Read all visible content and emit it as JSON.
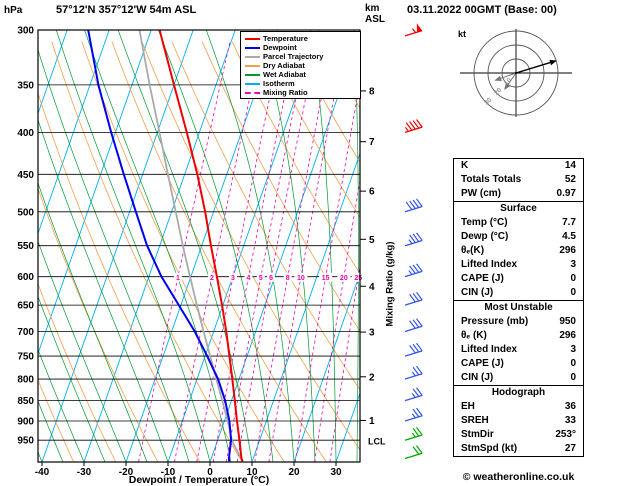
{
  "header": {
    "location": "57°12'N 357°12'W 54m ASL",
    "datetime": "03.11.2022 00GMT (Base: 00)"
  },
  "axes": {
    "pressure_unit": "hPa",
    "km_unit": "km",
    "asl_label": "ASL",
    "xlabel": "Dewpoint / Temperature (°C)",
    "mixing_ratio_label": "Mixing Ratio (g/kg)",
    "lcl_label": "LCL",
    "hodograph_unit": "kt"
  },
  "legend": [
    {
      "label": "Temperature",
      "color": "#ee0000",
      "dash": false
    },
    {
      "label": "Dewpoint",
      "color": "#0000ee",
      "dash": false
    },
    {
      "label": "Parcel Trajectory",
      "color": "#aaaaaa",
      "dash": false
    },
    {
      "label": "Dry Adiabat",
      "color": "#f0a050",
      "dash": false
    },
    {
      "label": "Wet Adiabat",
      "color": "#009933",
      "dash": false
    },
    {
      "label": "Isotherm",
      "color": "#00b0f0",
      "dash": false
    },
    {
      "label": "Mixing Ratio",
      "color": "#ee00aa",
      "dash": true
    }
  ],
  "stats_sections": [
    {
      "title": null,
      "rows": [
        [
          "K",
          "14"
        ],
        [
          "Totals Totals",
          "52"
        ],
        [
          "PW (cm)",
          "0.97"
        ]
      ]
    },
    {
      "title": "Surface",
      "rows": [
        [
          "Temp (°C)",
          "7.7"
        ],
        [
          "Dewp (°C)",
          "4.5"
        ],
        [
          "θₑ(K)",
          "296"
        ],
        [
          "Lifted Index",
          "3"
        ],
        [
          "CAPE (J)",
          "0"
        ],
        [
          "CIN (J)",
          "0"
        ]
      ]
    },
    {
      "title": "Most Unstable",
      "rows": [
        [
          "Pressure (mb)",
          "950"
        ],
        [
          "θₑ (K)",
          "296"
        ],
        [
          "Lifted Index",
          "3"
        ],
        [
          "CAPE (J)",
          "0"
        ],
        [
          "CIN (J)",
          "0"
        ]
      ]
    },
    {
      "title": "Hodograph",
      "rows": [
        [
          "EH",
          "36"
        ],
        [
          "SREH",
          "33"
        ],
        [
          "StmDir",
          "253°"
        ],
        [
          "StmSpd (kt)",
          "27"
        ]
      ]
    }
  ],
  "footer": {
    "copyright": "© weatheronline.co.uk"
  },
  "colors": {
    "temperature": "#ee0000",
    "dewpoint": "#0000ee",
    "parcel": "#aaaaaa",
    "dry_adiabat": "#f0a050",
    "wet_adiabat": "#009933",
    "isotherm": "#00b0f0",
    "mixing_ratio": "#ee00aa",
    "grid": "#000000",
    "barb_high": "#ee0000",
    "barb_mid": "#3355ee",
    "barb_low": "#00aa00"
  },
  "chart_data": {
    "type": "skewt-logp-sounding",
    "pressure_axis": {
      "unit": "hPa",
      "scale": "log",
      "top_hPa": 300,
      "bottom_hPa": 1010,
      "ticks": [
        300,
        350,
        400,
        450,
        500,
        550,
        600,
        650,
        700,
        750,
        800,
        850,
        900,
        950
      ]
    },
    "temp_axis": {
      "unit": "°C",
      "ticks": [
        -40,
        -30,
        -20,
        -10,
        0,
        10,
        20,
        30
      ],
      "skew": true
    },
    "km_axis": {
      "unit": "km ASL",
      "ticks": [
        1,
        2,
        3,
        4,
        5,
        6,
        7,
        8
      ],
      "lcl_pressure_hPa": 952
    },
    "isotherms_degC": {
      "min": -80,
      "max": 40,
      "step": 10
    },
    "dry_adiabats_K": {
      "min": 230,
      "max": 390,
      "step": 10
    },
    "wet_adiabats_degC": {
      "min": -70,
      "max": 40,
      "step": 5
    },
    "mixing_ratio_lines_gkg": [
      1,
      2,
      3,
      4,
      5,
      6,
      8,
      10,
      15,
      20,
      25
    ],
    "mixing_ratio_label_pressure_hPa": 601,
    "temperature_profile_hPa_C": [
      [
        1008,
        7.7
      ],
      [
        1000,
        7.2
      ],
      [
        950,
        5.2
      ],
      [
        900,
        3.0
      ],
      [
        850,
        0.8
      ],
      [
        800,
        -1.6
      ],
      [
        750,
        -4.2
      ],
      [
        700,
        -7.0
      ],
      [
        650,
        -10.2
      ],
      [
        600,
        -13.8
      ],
      [
        550,
        -17.8
      ],
      [
        500,
        -22.0
      ],
      [
        450,
        -27.0
      ],
      [
        400,
        -33.0
      ],
      [
        350,
        -40.0
      ],
      [
        300,
        -48.0
      ]
    ],
    "dewpoint_profile_hPa_C": [
      [
        1008,
        4.5
      ],
      [
        1000,
        4.2
      ],
      [
        950,
        3.2
      ],
      [
        900,
        1.2
      ],
      [
        850,
        -1.5
      ],
      [
        800,
        -5.0
      ],
      [
        750,
        -9.5
      ],
      [
        700,
        -14.5
      ],
      [
        650,
        -20.5
      ],
      [
        600,
        -27.0
      ],
      [
        550,
        -33.0
      ],
      [
        500,
        -38.5
      ],
      [
        450,
        -44.5
      ],
      [
        400,
        -51.0
      ],
      [
        350,
        -58.0
      ],
      [
        300,
        -65.0
      ]
    ],
    "parcel_profile_hPa_C": [
      [
        1008,
        7.7
      ],
      [
        952,
        3.5
      ],
      [
        900,
        0.8
      ],
      [
        850,
        -2.2
      ],
      [
        800,
        -5.4
      ],
      [
        750,
        -8.8
      ],
      [
        700,
        -12.4
      ],
      [
        650,
        -16.2
      ],
      [
        600,
        -20.2
      ],
      [
        550,
        -24.5
      ],
      [
        500,
        -29.0
      ],
      [
        450,
        -34.0
      ],
      [
        400,
        -39.5
      ],
      [
        350,
        -45.8
      ],
      [
        300,
        -52.8
      ]
    ],
    "wind_barbs": [
      {
        "p": 305,
        "kt": 55,
        "level": "high"
      },
      {
        "p": 400,
        "kt": 45,
        "level": "high"
      },
      {
        "p": 500,
        "kt": 40,
        "level": "mid"
      },
      {
        "p": 550,
        "kt": 35,
        "level": "mid"
      },
      {
        "p": 600,
        "kt": 35,
        "level": "mid"
      },
      {
        "p": 650,
        "kt": 30,
        "level": "mid"
      },
      {
        "p": 700,
        "kt": 30,
        "level": "mid"
      },
      {
        "p": 750,
        "kt": 30,
        "level": "mid"
      },
      {
        "p": 800,
        "kt": 25,
        "level": "mid"
      },
      {
        "p": 850,
        "kt": 25,
        "level": "mid"
      },
      {
        "p": 900,
        "kt": 25,
        "level": "mid"
      },
      {
        "p": 950,
        "kt": 25,
        "level": "low"
      },
      {
        "p": 1000,
        "kt": 20,
        "level": "low"
      }
    ],
    "hodograph": {
      "unit": "kt",
      "rings_kt": [
        10,
        20,
        30
      ],
      "storm_dir_deg": 253,
      "storm_speed_kt": 27
    }
  }
}
